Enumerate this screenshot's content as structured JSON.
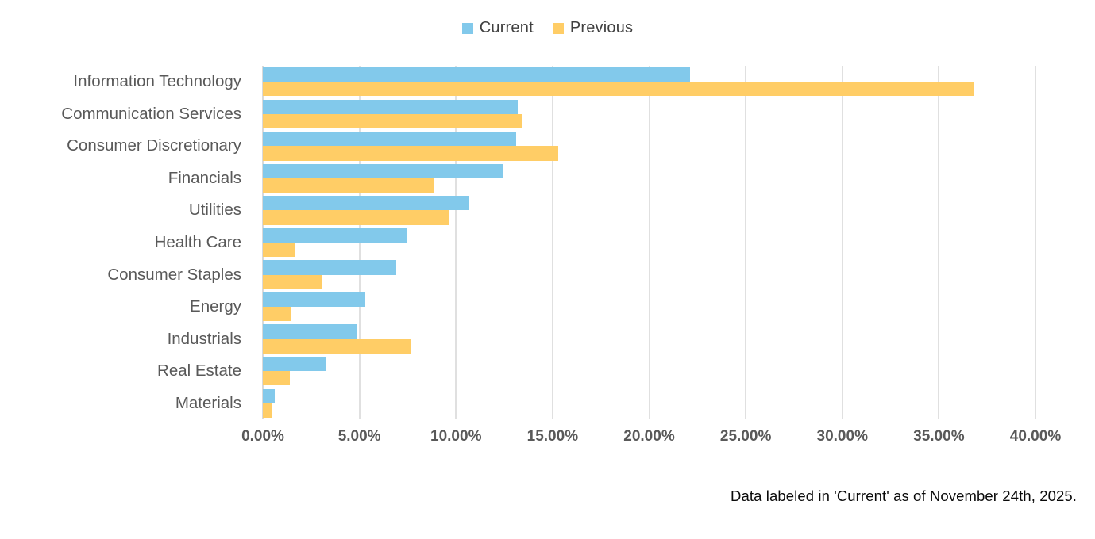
{
  "legend": {
    "items": [
      {
        "label": "Current",
        "color": "#82C9EB"
      },
      {
        "label": "Previous",
        "color": "#FFCD66"
      }
    ]
  },
  "footnote": "Data labeled in 'Current' as of November 24th, 2025.",
  "colors": {
    "current": "#82C9EB",
    "previous": "#FFCD66",
    "gridline": "#e0e0e0",
    "axis_text": "#595959",
    "footnote_text": "#0a0a0a"
  },
  "chart_data": {
    "type": "bar",
    "orientation": "horizontal",
    "title": "",
    "xlabel": "",
    "ylabel": "",
    "categories": [
      "Information Technology",
      "Communication Services",
      "Consumer Discretionary",
      "Financials",
      "Utilities",
      "Health Care",
      "Consumer Staples",
      "Energy",
      "Industrials",
      "Real Estate",
      "Materials"
    ],
    "series": [
      {
        "name": "Current",
        "color": "#82C9EB",
        "values": [
          22.1,
          13.2,
          13.1,
          12.4,
          10.7,
          7.5,
          6.9,
          5.3,
          4.9,
          3.3,
          0.6
        ]
      },
      {
        "name": "Previous",
        "color": "#FFCD66",
        "values": [
          36.8,
          13.4,
          15.3,
          8.9,
          9.6,
          1.7,
          3.1,
          1.5,
          7.7,
          1.4,
          0.5
        ]
      }
    ],
    "x_axis": {
      "min": 0,
      "max": 40,
      "tick_step": 5,
      "tick_labels": [
        "0.00%",
        "5.00%",
        "10.00%",
        "15.00%",
        "20.00%",
        "25.00%",
        "30.00%",
        "35.00%",
        "40.00%"
      ]
    },
    "grid": "vertical",
    "legend_position": "top-center",
    "footnote": "Data labeled in 'Current' as of November 24th, 2025."
  }
}
